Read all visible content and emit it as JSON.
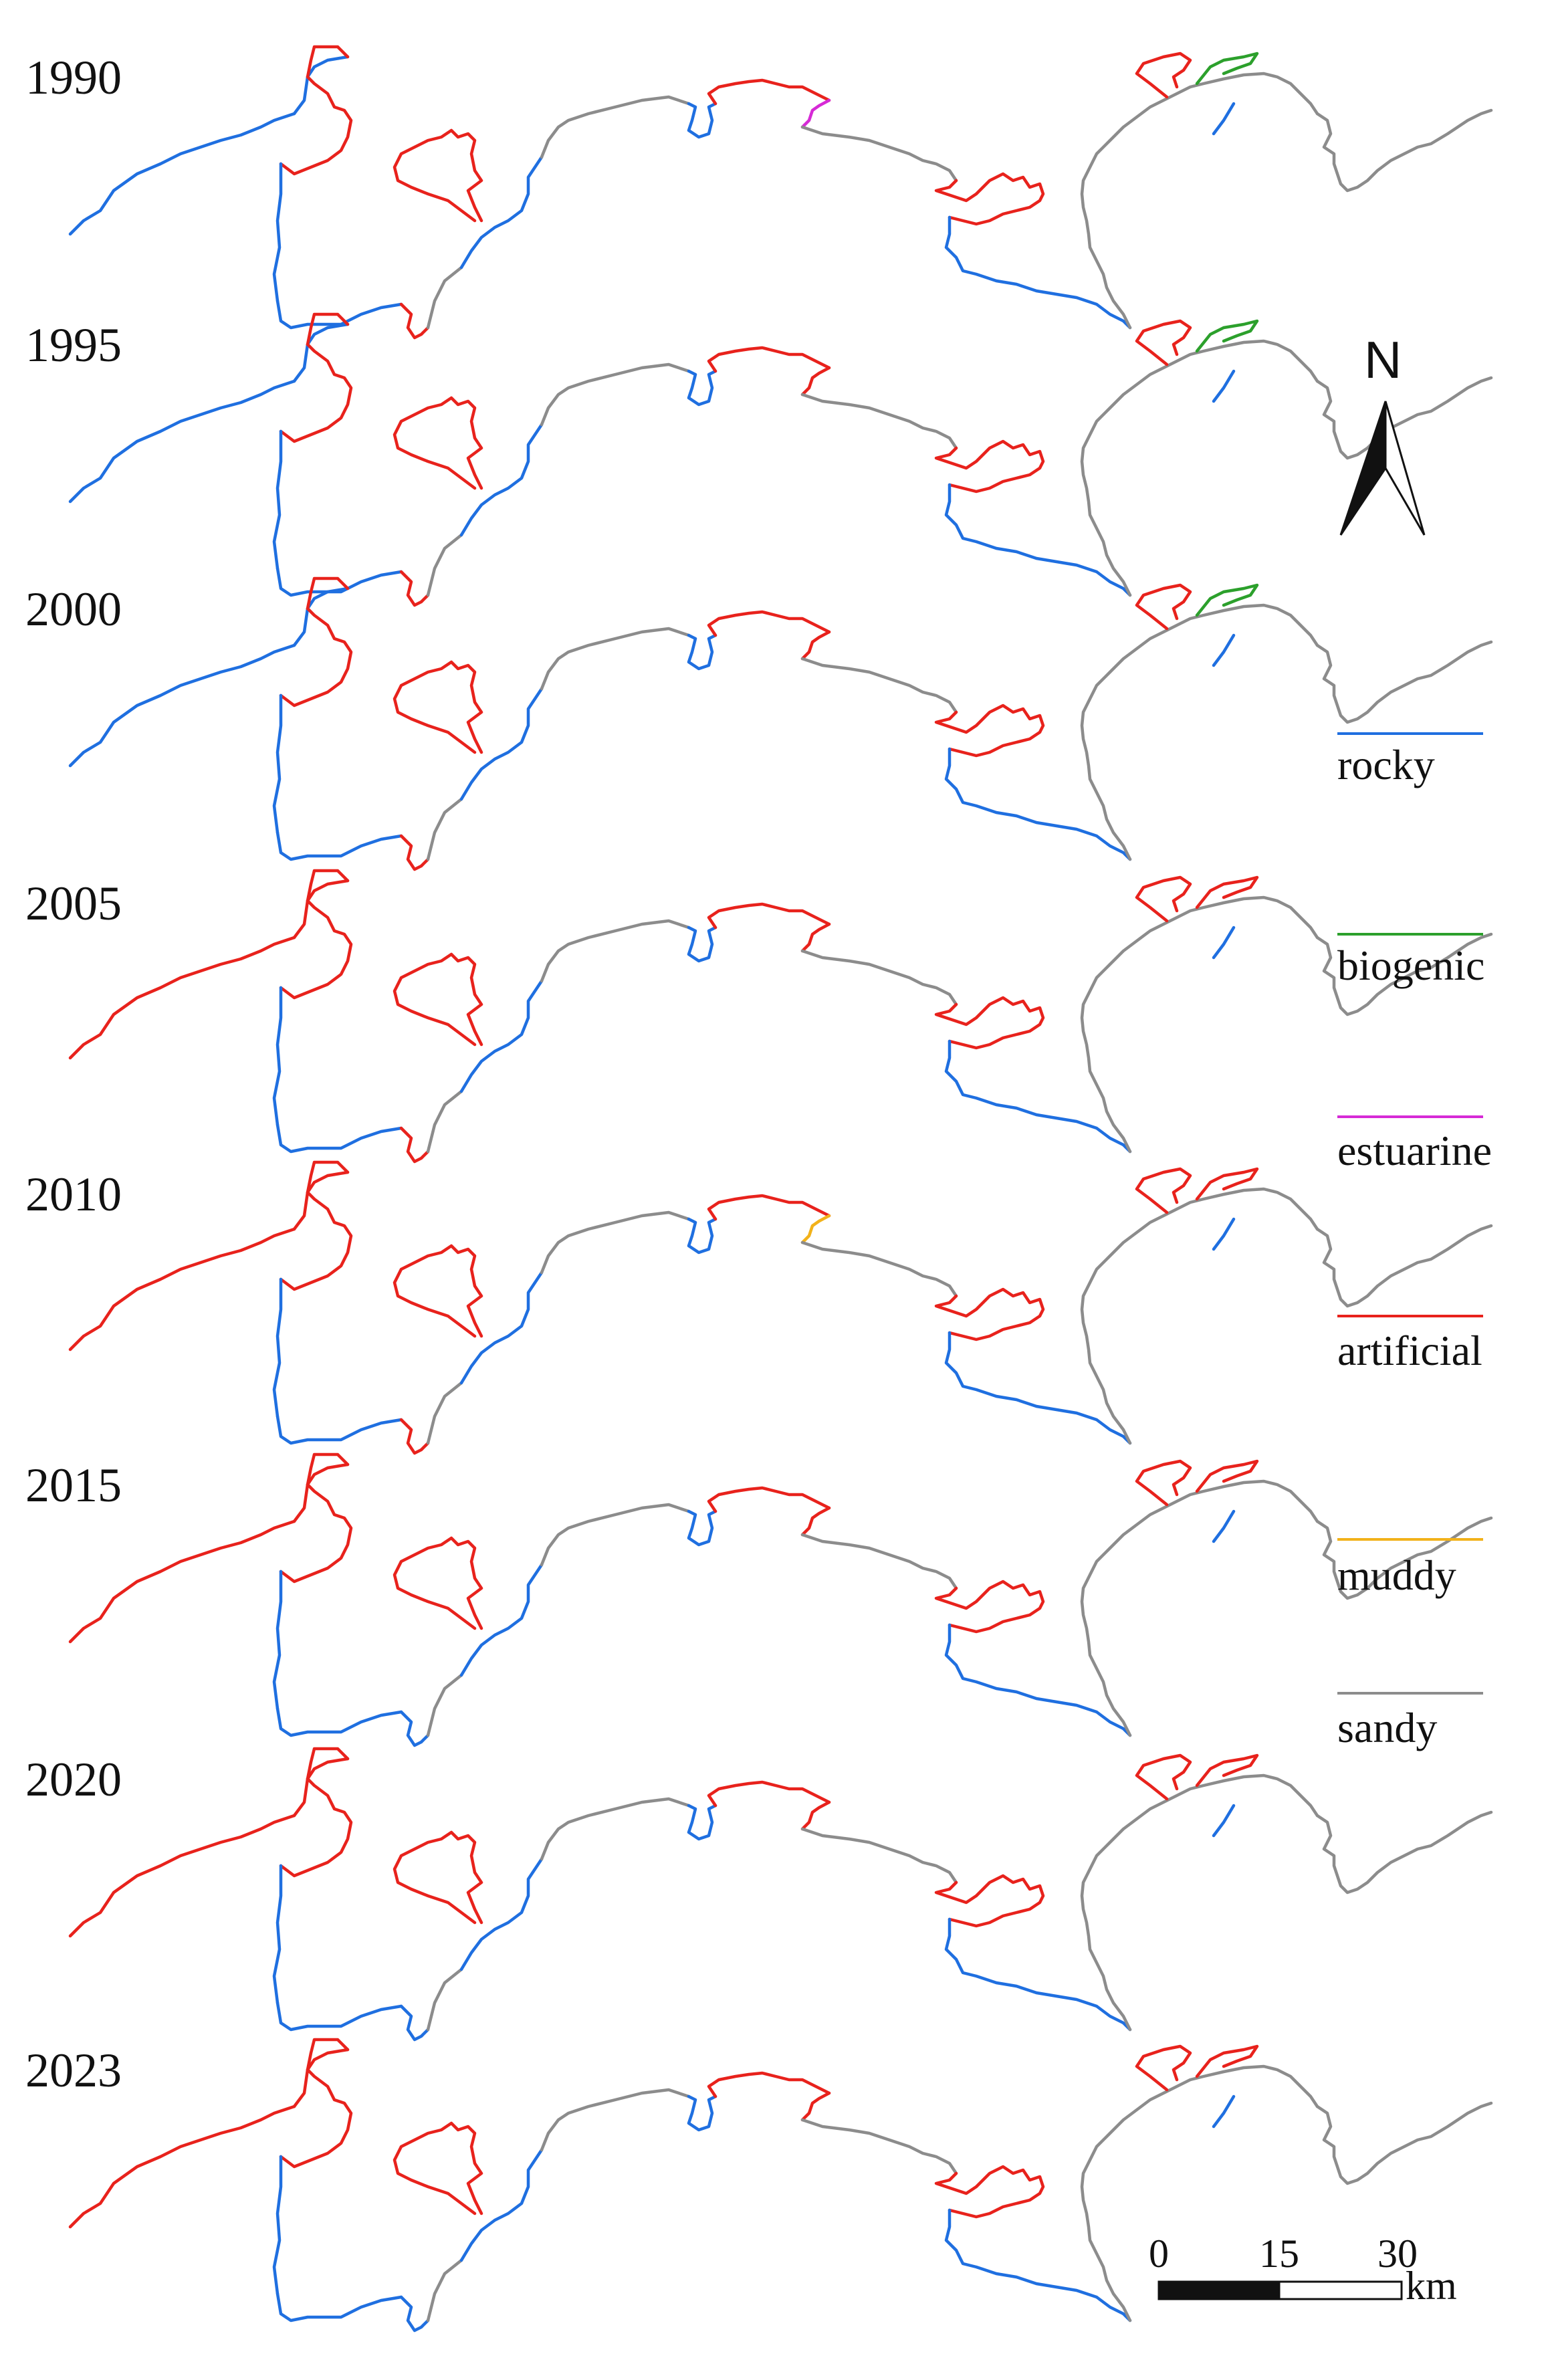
{
  "panels": [
    {
      "year": "1990"
    },
    {
      "year": "1995"
    },
    {
      "year": "2000"
    },
    {
      "year": "2005"
    },
    {
      "year": "2010"
    },
    {
      "year": "2015"
    },
    {
      "year": "2020"
    },
    {
      "year": "2023"
    }
  ],
  "legend": [
    {
      "label": "rocky",
      "color": "#1f6fe0"
    },
    {
      "label": "biogenic",
      "color": "#2ca02c"
    },
    {
      "label": "estuarine",
      "color": "#d62ad6"
    },
    {
      "label": "artificial",
      "color": "#e8221c"
    },
    {
      "label": "muddy",
      "color": "#f2b21a"
    },
    {
      "label": "sandy",
      "color": "#8c8c8c"
    }
  ],
  "north_arrow": {
    "label": "N"
  },
  "scale_bar": {
    "ticks": [
      "0",
      "15",
      "30"
    ],
    "unit": "km"
  }
}
